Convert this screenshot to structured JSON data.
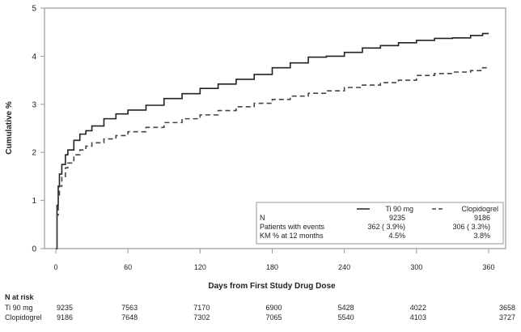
{
  "chart_data": {
    "type": "line",
    "ylabel": "Cumulative %",
    "xlabel": "Days from First Study Drug Dose",
    "xlim": [
      0,
      360
    ],
    "ylim": [
      0,
      5
    ],
    "xticks": [
      0,
      60,
      120,
      180,
      240,
      300,
      360
    ],
    "yticks": [
      0,
      1,
      2,
      3,
      4,
      5
    ],
    "grid": false,
    "series": [
      {
        "name": "Ti 90 mg",
        "style": "solid",
        "color": "#222222",
        "x": [
          0,
          1,
          2,
          3,
          5,
          8,
          10,
          15,
          20,
          25,
          30,
          40,
          50,
          60,
          75,
          90,
          105,
          120,
          135,
          150,
          165,
          180,
          195,
          210,
          225,
          240,
          255,
          270,
          285,
          300,
          315,
          330,
          345,
          355,
          360
        ],
        "y": [
          0,
          0.9,
          1.3,
          1.55,
          1.75,
          1.95,
          2.05,
          2.25,
          2.38,
          2.45,
          2.55,
          2.7,
          2.8,
          2.88,
          2.98,
          3.12,
          3.22,
          3.33,
          3.42,
          3.52,
          3.62,
          3.76,
          3.86,
          3.98,
          4.0,
          4.08,
          4.17,
          4.22,
          4.28,
          4.33,
          4.37,
          4.38,
          4.43,
          4.47,
          4.47
        ]
      },
      {
        "name": "Clopidogrel",
        "style": "dashed",
        "color": "#444444",
        "x": [
          0,
          1,
          2,
          3,
          5,
          8,
          10,
          15,
          20,
          25,
          30,
          40,
          50,
          60,
          75,
          90,
          105,
          120,
          135,
          150,
          165,
          180,
          195,
          210,
          225,
          240,
          255,
          270,
          285,
          300,
          315,
          330,
          345,
          355,
          360
        ],
        "y": [
          0,
          0.7,
          1.1,
          1.3,
          1.5,
          1.68,
          1.78,
          1.95,
          2.05,
          2.13,
          2.2,
          2.28,
          2.35,
          2.43,
          2.52,
          2.62,
          2.7,
          2.78,
          2.87,
          2.95,
          3.02,
          3.1,
          3.17,
          3.23,
          3.28,
          3.35,
          3.4,
          3.45,
          3.5,
          3.6,
          3.64,
          3.67,
          3.7,
          3.76,
          3.77
        ]
      }
    ],
    "legend": {
      "placement": "bottom-right",
      "columns": [
        "Ti 90 mg",
        "Clopidogrel"
      ],
      "rows": [
        {
          "label": "N",
          "values": [
            "9235",
            "9186"
          ]
        },
        {
          "label": "Patients with events",
          "values": [
            "362 ( 3.9%)",
            "306 ( 3.3%)"
          ]
        },
        {
          "label": "KM % at 12 months",
          "values": [
            "4.5%",
            "3.8%"
          ]
        }
      ]
    },
    "risk_table": {
      "title": "N at risk",
      "rows": [
        {
          "label": "Ti 90 mg",
          "values": [
            "9235",
            "7563",
            "7170",
            "6900",
            "5428",
            "4022",
            "3658"
          ]
        },
        {
          "label": "Clopidogrel",
          "values": [
            "9186",
            "7648",
            "7302",
            "7065",
            "5540",
            "4103",
            "3727"
          ]
        }
      ]
    }
  }
}
